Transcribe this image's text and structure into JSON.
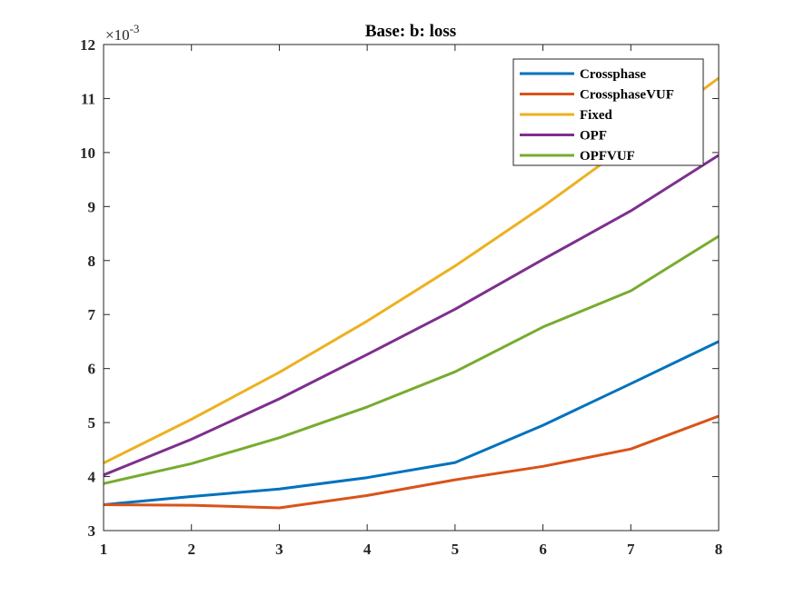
{
  "chart_data": {
    "type": "line",
    "title": "Base: b: loss",
    "xlabel": "",
    "ylabel": "",
    "exponent_base": "×10",
    "exponent_power": "-3",
    "xlim": [
      1,
      8
    ],
    "ylim": [
      3,
      12
    ],
    "x_ticks": [
      1,
      2,
      3,
      4,
      5,
      6,
      7,
      8
    ],
    "y_ticks": [
      3,
      4,
      5,
      6,
      7,
      8,
      9,
      10,
      11,
      12
    ],
    "grid": false,
    "legend_position": "top-right",
    "x": [
      1,
      2,
      3,
      4,
      5,
      6,
      7,
      8
    ],
    "series": [
      {
        "name": "Crossphase",
        "color": "#0072BD",
        "values": [
          3.48,
          3.63,
          3.77,
          3.98,
          4.26,
          4.95,
          5.72,
          6.5
        ]
      },
      {
        "name": "CrossphaseVUF",
        "color": "#D95319",
        "values": [
          3.48,
          3.47,
          3.42,
          3.65,
          3.94,
          4.19,
          4.51,
          5.12
        ]
      },
      {
        "name": "Fixed",
        "color": "#EDB120",
        "values": [
          4.25,
          5.06,
          5.93,
          6.88,
          7.9,
          9.0,
          10.18,
          11.38
        ]
      },
      {
        "name": "OPF",
        "color": "#7E2F8E",
        "values": [
          4.03,
          4.69,
          5.44,
          6.26,
          7.1,
          8.02,
          8.92,
          9.95
        ]
      },
      {
        "name": "OPFVUF",
        "color": "#77AC30",
        "values": [
          3.87,
          4.24,
          4.72,
          5.29,
          5.94,
          6.77,
          7.44,
          8.45
        ]
      }
    ]
  }
}
